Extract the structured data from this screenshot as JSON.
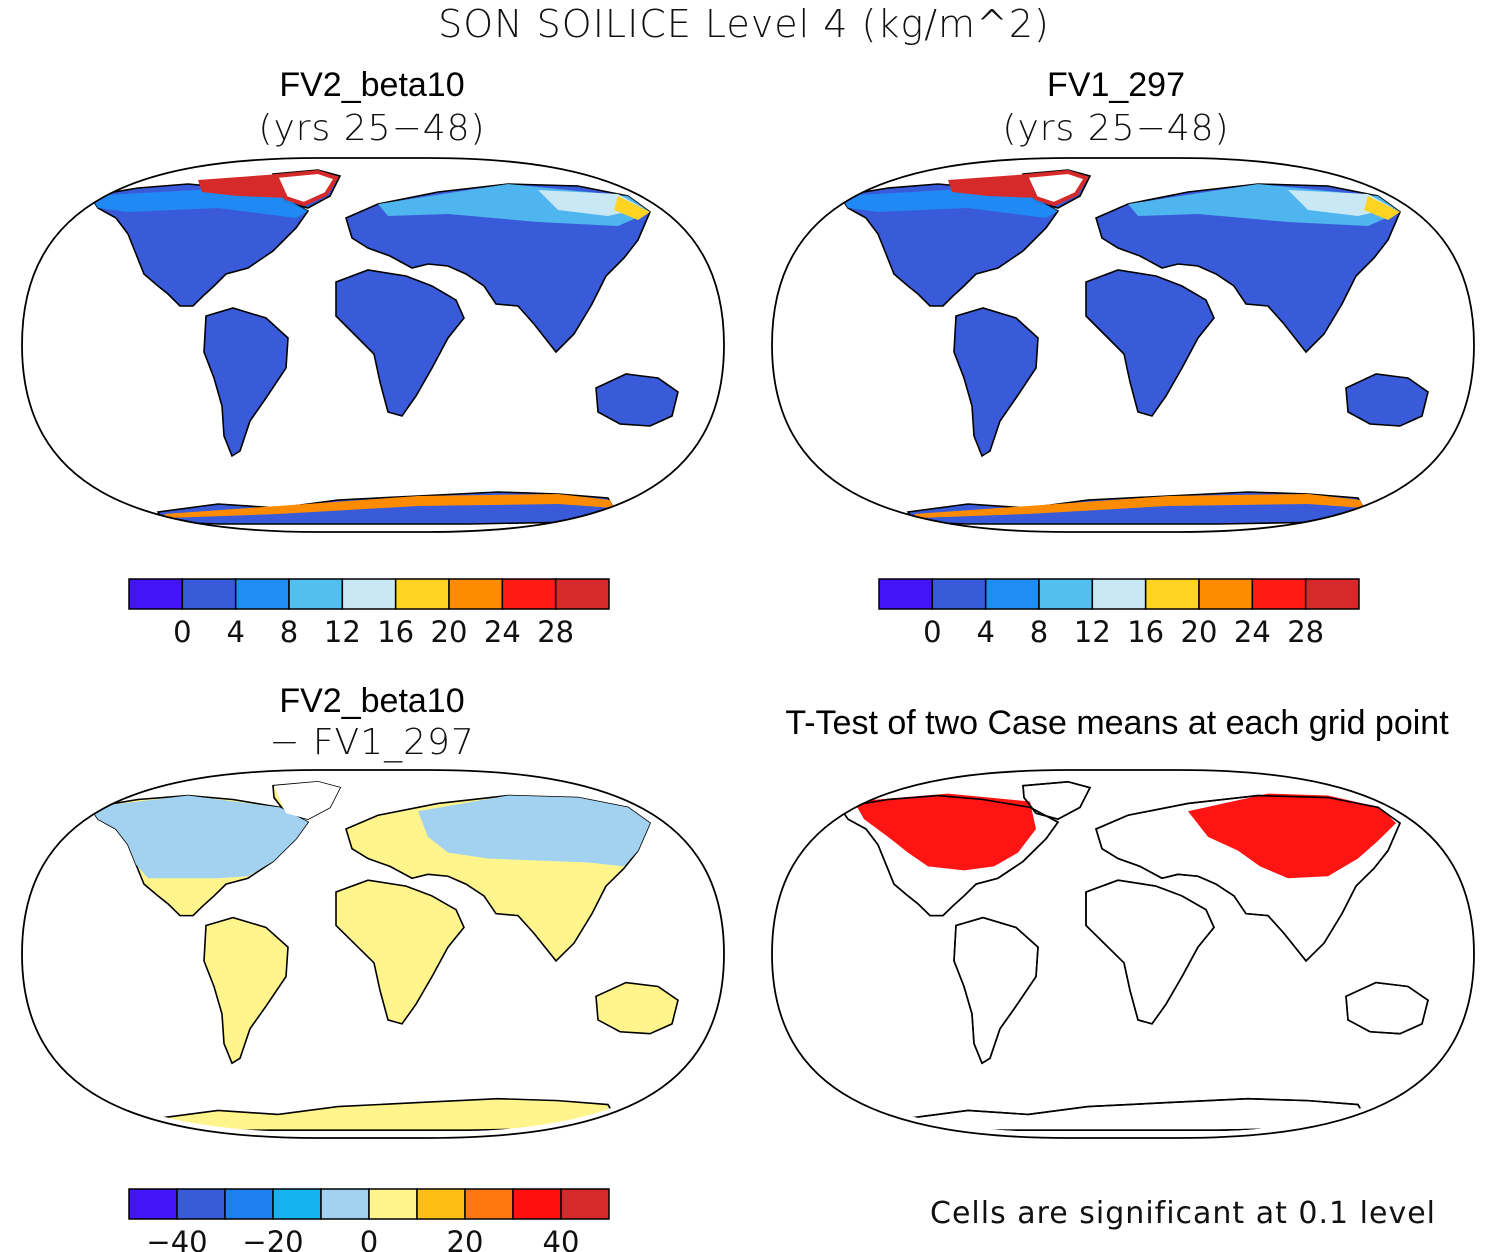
{
  "title": "SON SOILICE Level 4 (kg/m^2)",
  "panels": [
    {
      "id": "tl",
      "title": "FV2_beta10",
      "subtitle": "(yrs 25−48)",
      "fill": "#3a5bd9"
    },
    {
      "id": "tr",
      "title": "FV1_297",
      "subtitle": "(yrs 25−48)",
      "fill": "#3a5bd9"
    },
    {
      "id": "bl",
      "title": "FV2_beta10",
      "subtitle": "− FV1_297",
      "fill": "#fff58c"
    },
    {
      "id": "br",
      "title": "T-Test of two Case means at each grid point",
      "subtitle": "",
      "fill": "none"
    }
  ],
  "colorbar_abs": {
    "colors": [
      "#4314f5",
      "#3a5bd9",
      "#1e8ef5",
      "#52bff0",
      "#c8e8f6",
      "#ffd322",
      "#ff8c00",
      "#ff1a14",
      "#d62a2a"
    ],
    "labels": [
      "0",
      "4",
      "8",
      "12",
      "16",
      "20",
      "24",
      "28"
    ]
  },
  "colorbar_diff": {
    "colors": [
      "#4314f5",
      "#3a5bd9",
      "#1e7ff0",
      "#14b4f0",
      "#a2d2ef",
      "#fff58c",
      "#ffbe14",
      "#ff780f",
      "#ff0f0f",
      "#d62a2a"
    ],
    "labels": [
      "−40",
      "−20",
      "0",
      "20",
      "40"
    ],
    "label_boundaries": [
      1,
      3,
      5,
      7,
      9
    ]
  },
  "significance_note": "Cells are significant at 0.1 level",
  "colors": {
    "significant": "#ff1414",
    "coast": "#000000"
  }
}
